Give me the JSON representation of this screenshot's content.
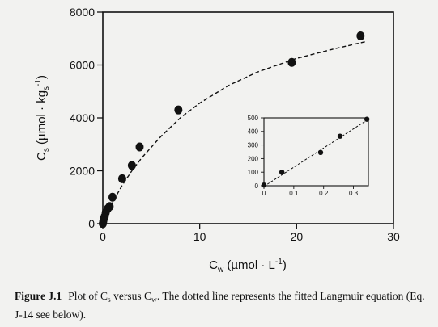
{
  "chart_data": [
    {
      "type": "scatter",
      "role": "main",
      "xlim": [
        0,
        30
      ],
      "ylim": [
        0,
        8000
      ],
      "xticks": [
        0,
        10,
        20,
        30
      ],
      "yticks": [
        0,
        2000,
        4000,
        6000,
        8000
      ],
      "xlabel": {
        "main": "C",
        "sub": "w",
        "units": " (µmol · L",
        "sup": "-1",
        "close": ")"
      },
      "ylabel": {
        "main": "C",
        "sub": "s",
        "units": " (µmol · kg",
        "unit_sub": "s",
        "sup": "-1",
        "close": ")"
      },
      "points": [
        {
          "x": 0.0,
          "y": 0
        },
        {
          "x": 0.05,
          "y": 100
        },
        {
          "x": 0.1,
          "y": 180
        },
        {
          "x": 0.2,
          "y": 280
        },
        {
          "x": 0.3,
          "y": 420
        },
        {
          "x": 0.5,
          "y": 560
        },
        {
          "x": 0.7,
          "y": 650
        },
        {
          "x": 1.0,
          "y": 1000
        },
        {
          "x": 2.0,
          "y": 1700
        },
        {
          "x": 3.0,
          "y": 2200
        },
        {
          "x": 3.8,
          "y": 2900
        },
        {
          "x": 7.8,
          "y": 4300
        },
        {
          "x": 19.5,
          "y": 6100
        },
        {
          "x": 26.6,
          "y": 7100
        }
      ],
      "fit_line": {
        "style": "dashed",
        "x": [
          0,
          0.5,
          1,
          2,
          3,
          4,
          6,
          8,
          10,
          13,
          16,
          20,
          24,
          27.2
        ],
        "y": [
          0,
          430,
          800,
          1450,
          2000,
          2480,
          3300,
          4000,
          4560,
          5230,
          5740,
          6250,
          6620,
          6890
        ]
      }
    },
    {
      "type": "scatter",
      "role": "inset",
      "xlim": [
        0,
        0.35
      ],
      "ylim": [
        0,
        500
      ],
      "xticks": [
        0,
        0.1,
        0.2,
        0.3
      ],
      "xtick_labels": [
        "0",
        "0.1",
        "0.2",
        "0.3"
      ],
      "yticks": [
        0,
        100,
        200,
        300,
        400,
        500
      ],
      "points": [
        {
          "x": 0.0,
          "y": 5
        },
        {
          "x": 0.06,
          "y": 100
        },
        {
          "x": 0.19,
          "y": 245
        },
        {
          "x": 0.255,
          "y": 365
        },
        {
          "x": 0.345,
          "y": 490
        }
      ],
      "fit_line": {
        "style": "dashed",
        "x": [
          0,
          0.35
        ],
        "y": [
          -5,
          490
        ]
      }
    }
  ],
  "caption": {
    "label": "Figure J.1",
    "parts": [
      {
        "t": "Plot of C"
      },
      {
        "t": "s",
        "sub": true
      },
      {
        "t": " versus C"
      },
      {
        "t": "w",
        "sub": true
      },
      {
        "t": ". The dotted line represents the fitted Langmuir equation (Eq. J-14 see below)."
      }
    ]
  }
}
